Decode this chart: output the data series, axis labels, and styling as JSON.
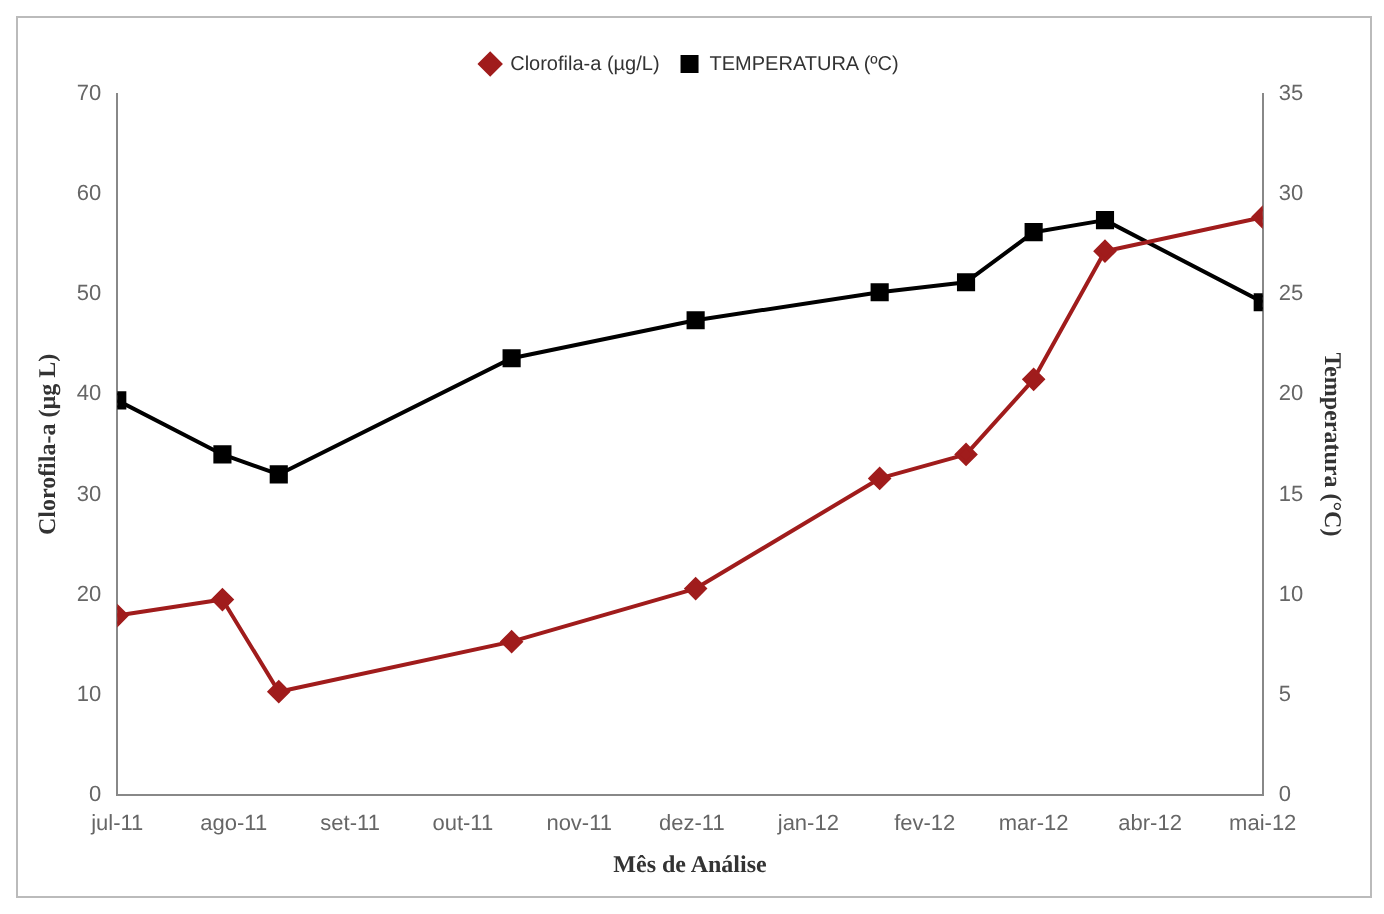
{
  "chart_data": {
    "type": "line",
    "xlabel": "Mês de Análise",
    "ylabel": "Clorofila-a (µg L)",
    "y2label": "Temperatura (°C)",
    "x": [
      "2011-07-01",
      "2011-07-29",
      "2011-08-13",
      "2011-10-14",
      "2011-12-02",
      "2012-01-20",
      "2012-02-12",
      "2012-03-01",
      "2012-03-20",
      "2012-05-01"
    ],
    "series": [
      {
        "name": "Clorofila-a (µg/L)",
        "color": "#a01c1c",
        "marker": "diamond",
        "values": [
          17.9,
          19.5,
          10.3,
          15.3,
          20.6,
          31.6,
          34,
          41.5,
          54.3,
          57.7
        ]
      },
      {
        "name": "TEMPERATURA (ºC)",
        "color": "#000000",
        "marker": "square",
        "axis": "y2",
        "values": [
          19.7,
          17,
          16,
          21.8,
          23.7,
          25.1,
          25.6,
          28.1,
          28.7,
          24.6
        ]
      }
    ],
    "xlim": [
      "2011-07-01",
      "2012-05-01"
    ],
    "xticks": [
      {
        "value": "2011-07-01",
        "label": "jul-11"
      },
      {
        "value": "2011-08-01",
        "label": "ago-11"
      },
      {
        "value": "2011-09-01",
        "label": "set-11"
      },
      {
        "value": "2011-10-01",
        "label": "out-11"
      },
      {
        "value": "2011-11-01",
        "label": "nov-11"
      },
      {
        "value": "2011-12-01",
        "label": "dez-11"
      },
      {
        "value": "2012-01-01",
        "label": "jan-12"
      },
      {
        "value": "2012-02-01",
        "label": "fev-12"
      },
      {
        "value": "2012-03-01",
        "label": "mar-12"
      },
      {
        "value": "2012-04-01",
        "label": "abr-12"
      },
      {
        "value": "2012-05-01",
        "label": "mai-12"
      }
    ],
    "ylim": [
      0,
      70
    ],
    "yticks": [
      0,
      10,
      20,
      30,
      40,
      50,
      60,
      70
    ],
    "y2lim": [
      0,
      35
    ],
    "y2ticks": [
      0,
      5,
      10,
      15,
      20,
      25,
      30,
      35
    ],
    "grid": false,
    "legend": "top",
    "line_style": "solid"
  }
}
